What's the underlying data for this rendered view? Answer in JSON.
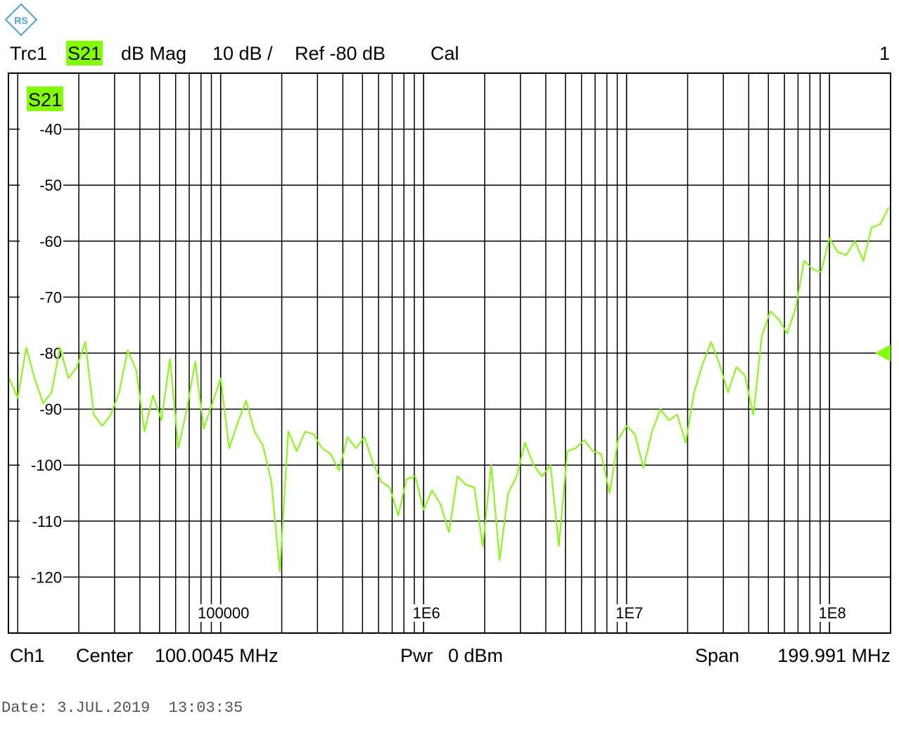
{
  "header": {
    "trace": "Trc1",
    "parameter": "S21",
    "format": "dB Mag",
    "scale": "10 dB /",
    "reference": "Ref -80 dB",
    "calibration": "Cal",
    "window": "1"
  },
  "footer": {
    "channel": "Ch1",
    "center_label": "Center",
    "center": "100.0045 MHz",
    "power_label": "Pwr",
    "power": "0 dBm",
    "span_label": "Span",
    "span": "199.991 MHz"
  },
  "date": "Date: 3.JUL.2019  13:03:35",
  "chart_data": {
    "type": "line",
    "xscale": "log",
    "minor_grid": true,
    "grid": true,
    "xlim": [
      9000,
      200000000
    ],
    "ylim": [
      -130,
      -30
    ],
    "xticks": [
      100000,
      {
        "value": 1000000,
        "label": "1E6"
      },
      {
        "value": 10000000,
        "label": "1E7"
      },
      {
        "value": 100000000,
        "label": "1E8"
      }
    ],
    "yticks": [
      -40,
      -50,
      -60,
      -70,
      -80,
      -90,
      -100,
      -110,
      -120
    ],
    "ref_level": -80,
    "x": [
      9085,
      10000,
      11010,
      12120,
      13340,
      14680,
      16160,
      17780,
      19570,
      21540,
      23710,
      26100,
      28730,
      31620,
      34810,
      38310,
      42170,
      46420,
      51090,
      56230,
      61900,
      68130,
      74990,
      82540,
      90850,
      100000,
      110100,
      121200,
      133400,
      146800,
      161600,
      177800,
      195700,
      215400,
      237100,
      261000,
      287300,
      316200,
      348100,
      383100,
      421700,
      464200,
      510900,
      562300,
      619000,
      681300,
      749900,
      825400,
      908500,
      1000000,
      1101000,
      1212000,
      1334000,
      1468000,
      1616000,
      1778000,
      1957000,
      2154000,
      2371000,
      2610000,
      2873000,
      3162000,
      3481000,
      3831000,
      4217000,
      4642000,
      5109000,
      5623000,
      6190000,
      6813000,
      7499000,
      8254000,
      9085000,
      10000000,
      11010000,
      12120000,
      13340000,
      14680000,
      16160000,
      17780000,
      19570000,
      21540000,
      23710000,
      26100000,
      28730000,
      31620000,
      34810000,
      38310000,
      42170000,
      46420000,
      51090000,
      56230000,
      61900000,
      68130000,
      74990000,
      82540000,
      90850000,
      100000000,
      110100000,
      121200000,
      133400000,
      146800000,
      161600000,
      177800000,
      195700000
    ],
    "series": [
      {
        "name": "S21",
        "color": "#80ff00",
        "values": [
          -84.5,
          -88,
          -79,
          -84.5,
          -89,
          -87,
          -79,
          -84.5,
          -82.5,
          -78,
          -91,
          -93,
          -91,
          -87,
          -79.5,
          -83,
          -94,
          -87.5,
          -92,
          -81,
          -97,
          -90,
          -81.5,
          -93.5,
          -89,
          -84.5,
          -97,
          -92.5,
          -88.5,
          -94,
          -96.5,
          -103,
          -119,
          -94,
          -97.5,
          -94,
          -94.5,
          -97,
          -98,
          -101,
          -95,
          -97,
          -95,
          -99.5,
          -103,
          -104,
          -109,
          -102.5,
          -102,
          -108,
          -104.5,
          -107,
          -112,
          -102,
          -103.5,
          -104,
          -114.5,
          -100,
          -117,
          -105,
          -102,
          -96,
          -100,
          -102,
          -100,
          -114.5,
          -97.5,
          -97,
          -95.5,
          -97.5,
          -98,
          -105,
          -95.5,
          -93,
          -94.5,
          -100.5,
          -94,
          -90,
          -92,
          -91,
          -96,
          -87,
          -82,
          -78,
          -82,
          -87,
          -82.5,
          -84,
          -91,
          -77,
          -72.5,
          -74,
          -76.5,
          -72,
          -63.5,
          -65,
          -65.5,
          -59.5,
          -62,
          -62.5,
          -60,
          -63.5,
          -57.5,
          -57,
          -54
        ]
      }
    ]
  }
}
